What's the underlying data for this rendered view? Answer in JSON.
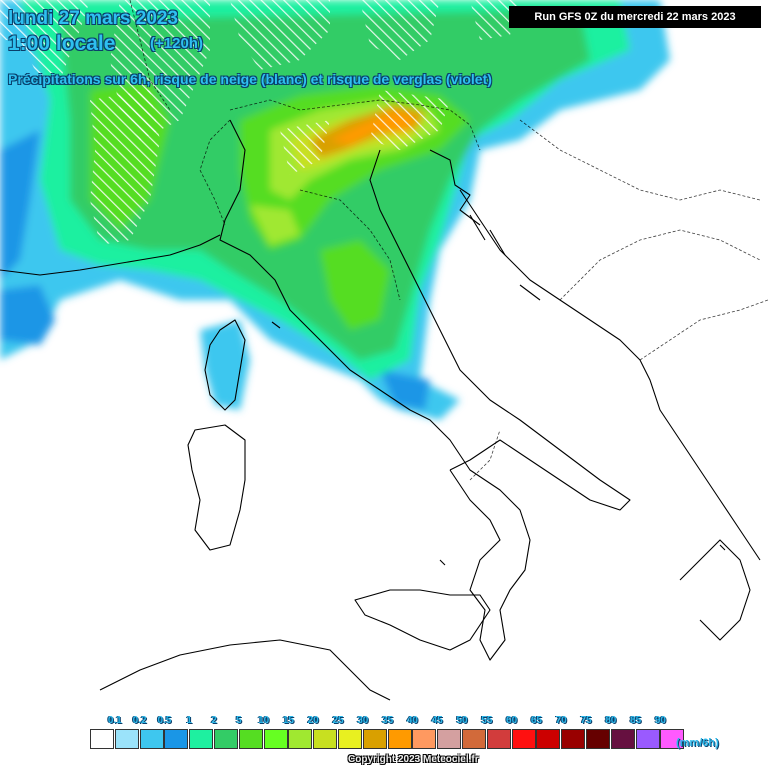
{
  "header": {
    "date": "lundi 27 mars 2023",
    "local_time": "1:00 locale",
    "forecast_offset": "(+120h)",
    "description": "Précipitations sur 6h, risque de neige (blanc) et risque de verglas (violet)"
  },
  "run_info": "Run GFS 0Z du mercredi 22 mars 2023",
  "map": {
    "region": "Italy / Adriatic",
    "colors": {
      "land": "#ffffff",
      "border_line": "#000000",
      "snow_hatch": "#ffffff"
    }
  },
  "legend": {
    "unit": "(mm/6h)",
    "ticks": [
      "0.1",
      "0.2",
      "0.5",
      "1",
      "2",
      "5",
      "10",
      "15",
      "20",
      "25",
      "30",
      "35",
      "40",
      "45",
      "50",
      "55",
      "60",
      "65",
      "70",
      "75",
      "80",
      "85",
      "90"
    ],
    "swatches": [
      "#ffffff",
      "#9be3fa",
      "#3ec7ef",
      "#1a96e6",
      "#1ef0a0",
      "#33cc66",
      "#55dd22",
      "#66ff22",
      "#a0e830",
      "#c8e020",
      "#e8f020",
      "#d9a000",
      "#ff9a00",
      "#ff9960",
      "#d4a0a0",
      "#d26a3a",
      "#d23c3c",
      "#ff1010",
      "#cc0000",
      "#990000",
      "#660000",
      "#661040",
      "#9a5aff",
      "#ff5aff"
    ]
  },
  "copyright": "Copyright 2023 Meteociel.fr"
}
